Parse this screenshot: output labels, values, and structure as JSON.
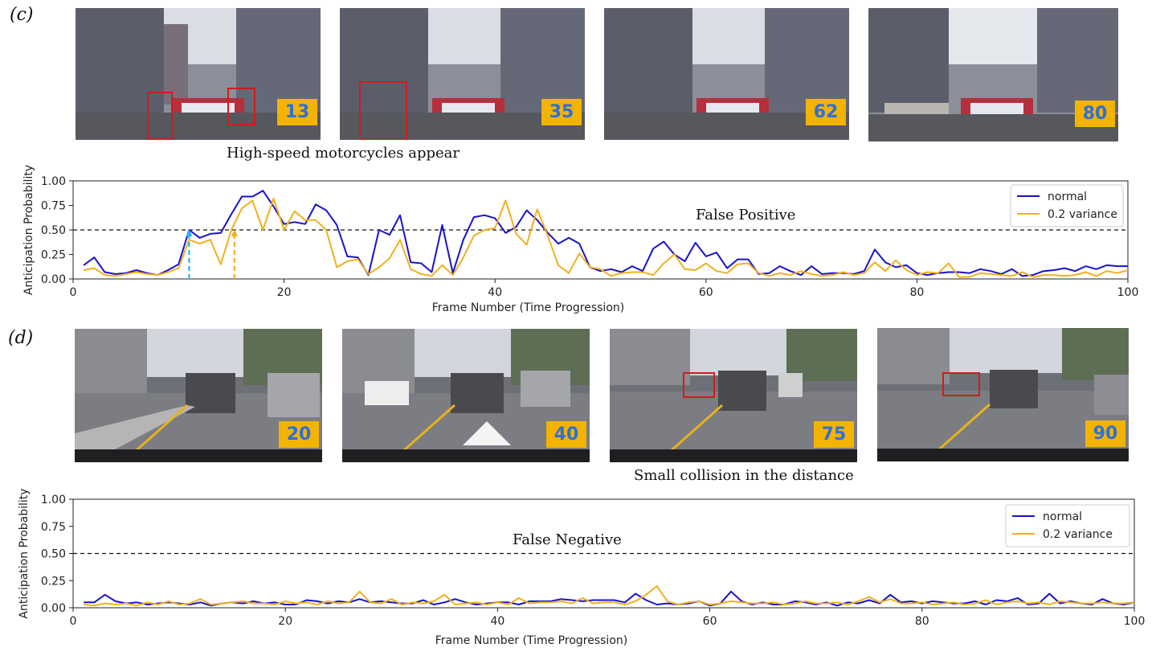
{
  "panels": [
    {
      "label": "(c)",
      "frames": [
        {
          "frame": "13",
          "scene": "urban-street-motorcycles"
        },
        {
          "frame": "35",
          "scene": "urban-street-motorcycles"
        },
        {
          "frame": "62",
          "scene": "urban-street-motorcycles"
        },
        {
          "frame": "80",
          "scene": "urban-street-motorcycles"
        }
      ],
      "caption": "High-speed motorcycles appear"
    },
    {
      "label": "(d)",
      "frames": [
        {
          "frame": "20",
          "scene": "multi-lane-road"
        },
        {
          "frame": "40",
          "scene": "multi-lane-road"
        },
        {
          "frame": "75",
          "scene": "multi-lane-road"
        },
        {
          "frame": "90",
          "scene": "multi-lane-road"
        }
      ],
      "caption": "Small collision in the distance"
    }
  ],
  "colors": {
    "normal": "#1a12c8",
    "variance": "#f0b020",
    "badge_bg": "#f2b400",
    "badge_text": "#2f6fd8",
    "threshold": "#111111",
    "cyan_marker": "#29b6e8"
  },
  "chart_data": [
    {
      "type": "line",
      "annotation": "False Positive",
      "xlabel": "Frame Number (Time Progression)",
      "ylabel": "Anticipation Probability",
      "xlim": [
        0,
        100
      ],
      "ylim": [
        0,
        1
      ],
      "xticks": [
        "0",
        "20",
        "40",
        "60",
        "80",
        "100"
      ],
      "yticks": [
        "0.00",
        "0.25",
        "0.50",
        "0.75",
        "1.00"
      ],
      "threshold": 0.5,
      "markers": [
        {
          "x": 11,
          "y": 0.5,
          "color": "cyan"
        },
        {
          "x": 15.3,
          "y": 0.5,
          "color": "orange"
        }
      ],
      "legend_position": "top-right",
      "series": [
        {
          "name": "normal",
          "x": [
            1,
            2,
            3,
            4,
            5,
            6,
            7,
            8,
            9,
            10,
            11,
            12,
            13,
            14,
            15,
            16,
            17,
            18,
            19,
            20,
            21,
            22,
            23,
            24,
            25,
            26,
            27,
            28,
            29,
            30,
            31,
            32,
            33,
            34,
            35,
            36,
            37,
            38,
            39,
            40,
            41,
            42,
            43,
            44,
            45,
            46,
            47,
            48,
            49,
            50,
            51,
            52,
            53,
            54,
            55,
            56,
            57,
            58,
            59,
            60,
            61,
            62,
            63,
            64,
            65,
            66,
            67,
            68,
            69,
            70,
            71,
            72,
            73,
            74,
            75,
            76,
            77,
            78,
            79,
            80,
            81,
            82,
            83,
            84,
            85,
            86,
            87,
            88,
            89,
            90,
            91,
            92,
            93,
            94,
            95,
            96,
            97,
            98,
            99,
            100
          ],
          "values": [
            0.14,
            0.22,
            0.07,
            0.05,
            0.06,
            0.09,
            0.06,
            0.04,
            0.09,
            0.15,
            0.5,
            0.42,
            0.46,
            0.47,
            0.66,
            0.84,
            0.84,
            0.9,
            0.74,
            0.56,
            0.58,
            0.56,
            0.76,
            0.7,
            0.55,
            0.23,
            0.22,
            0.04,
            0.5,
            0.45,
            0.65,
            0.17,
            0.16,
            0.07,
            0.55,
            0.06,
            0.4,
            0.63,
            0.65,
            0.62,
            0.47,
            0.53,
            0.7,
            0.6,
            0.47,
            0.36,
            0.42,
            0.36,
            0.12,
            0.08,
            0.1,
            0.07,
            0.13,
            0.08,
            0.31,
            0.38,
            0.25,
            0.18,
            0.37,
            0.23,
            0.27,
            0.11,
            0.2,
            0.2,
            0.05,
            0.06,
            0.13,
            0.08,
            0.04,
            0.13,
            0.05,
            0.06,
            0.06,
            0.05,
            0.08,
            0.3,
            0.17,
            0.12,
            0.14,
            0.06,
            0.04,
            0.06,
            0.07,
            0.07,
            0.06,
            0.1,
            0.08,
            0.05,
            0.1,
            0.03,
            0.04,
            0.08,
            0.09,
            0.11,
            0.08,
            0.13,
            0.1,
            0.14,
            0.13,
            0.13
          ]
        },
        {
          "name": "0.2 variance",
          "x": [
            1,
            2,
            3,
            4,
            5,
            6,
            7,
            8,
            9,
            10,
            11,
            12,
            13,
            14,
            15,
            16,
            17,
            18,
            19,
            20,
            21,
            22,
            23,
            24,
            25,
            26,
            27,
            28,
            29,
            30,
            31,
            32,
            33,
            34,
            35,
            36,
            37,
            38,
            39,
            40,
            41,
            42,
            43,
            44,
            45,
            46,
            47,
            48,
            49,
            50,
            51,
            52,
            53,
            54,
            55,
            56,
            57,
            58,
            59,
            60,
            61,
            62,
            63,
            64,
            65,
            66,
            67,
            68,
            69,
            70,
            71,
            72,
            73,
            74,
            75,
            76,
            77,
            78,
            79,
            80,
            81,
            82,
            83,
            84,
            85,
            86,
            87,
            88,
            89,
            90,
            91,
            92,
            93,
            94,
            95,
            96,
            97,
            98,
            99,
            100
          ],
          "values": [
            0.09,
            0.11,
            0.04,
            0.03,
            0.05,
            0.07,
            0.05,
            0.04,
            0.07,
            0.11,
            0.4,
            0.36,
            0.4,
            0.15,
            0.5,
            0.72,
            0.8,
            0.5,
            0.82,
            0.5,
            0.69,
            0.6,
            0.6,
            0.5,
            0.12,
            0.18,
            0.2,
            0.05,
            0.12,
            0.21,
            0.4,
            0.1,
            0.05,
            0.03,
            0.14,
            0.04,
            0.22,
            0.44,
            0.5,
            0.52,
            0.8,
            0.46,
            0.35,
            0.71,
            0.44,
            0.14,
            0.06,
            0.26,
            0.12,
            0.1,
            0.03,
            0.06,
            0.07,
            0.07,
            0.04,
            0.16,
            0.25,
            0.1,
            0.09,
            0.16,
            0.08,
            0.06,
            0.15,
            0.16,
            0.06,
            0.03,
            0.06,
            0.04,
            0.08,
            0.05,
            0.03,
            0.04,
            0.07,
            0.04,
            0.06,
            0.17,
            0.08,
            0.19,
            0.09,
            0.04,
            0.07,
            0.06,
            0.16,
            0.02,
            0.02,
            0.06,
            0.05,
            0.04,
            0.03,
            0.07,
            0.02,
            0.04,
            0.04,
            0.03,
            0.04,
            0.07,
            0.03,
            0.08,
            0.06,
            0.09
          ]
        }
      ]
    },
    {
      "type": "line",
      "annotation": "False Negative",
      "xlabel": "Frame Number (Time Progression)",
      "ylabel": "Anticipation Probability",
      "xlim": [
        0,
        100
      ],
      "ylim": [
        0,
        1
      ],
      "xticks": [
        "0",
        "20",
        "40",
        "60",
        "80",
        "100"
      ],
      "yticks": [
        "0.00",
        "0.25",
        "0.50",
        "0.75",
        "1.00"
      ],
      "threshold": 0.5,
      "markers": [],
      "legend_position": "top-right",
      "series": [
        {
          "name": "normal",
          "x": [
            1,
            2,
            3,
            4,
            5,
            6,
            7,
            8,
            9,
            10,
            11,
            12,
            13,
            14,
            15,
            16,
            17,
            18,
            19,
            20,
            21,
            22,
            23,
            24,
            25,
            26,
            27,
            28,
            29,
            30,
            31,
            32,
            33,
            34,
            35,
            36,
            37,
            38,
            39,
            40,
            41,
            42,
            43,
            44,
            45,
            46,
            47,
            48,
            49,
            50,
            51,
            52,
            53,
            54,
            55,
            56,
            57,
            58,
            59,
            60,
            61,
            62,
            63,
            64,
            65,
            66,
            67,
            68,
            69,
            70,
            71,
            72,
            73,
            74,
            75,
            76,
            77,
            78,
            79,
            80,
            81,
            82,
            83,
            84,
            85,
            86,
            87,
            88,
            89,
            90,
            91,
            92,
            93,
            94,
            95,
            96,
            97,
            98,
            99,
            100
          ],
          "values": [
            0.05,
            0.05,
            0.12,
            0.06,
            0.04,
            0.05,
            0.03,
            0.04,
            0.05,
            0.04,
            0.03,
            0.05,
            0.02,
            0.04,
            0.05,
            0.04,
            0.06,
            0.04,
            0.05,
            0.03,
            0.03,
            0.07,
            0.06,
            0.04,
            0.06,
            0.05,
            0.08,
            0.05,
            0.06,
            0.05,
            0.04,
            0.04,
            0.07,
            0.03,
            0.05,
            0.08,
            0.05,
            0.03,
            0.04,
            0.05,
            0.05,
            0.03,
            0.06,
            0.06,
            0.06,
            0.08,
            0.07,
            0.06,
            0.07,
            0.07,
            0.07,
            0.05,
            0.13,
            0.07,
            0.03,
            0.04,
            0.03,
            0.04,
            0.06,
            0.02,
            0.04,
            0.15,
            0.06,
            0.03,
            0.05,
            0.03,
            0.03,
            0.06,
            0.05,
            0.03,
            0.05,
            0.02,
            0.05,
            0.04,
            0.07,
            0.04,
            0.12,
            0.05,
            0.06,
            0.04,
            0.06,
            0.05,
            0.04,
            0.04,
            0.06,
            0.03,
            0.07,
            0.06,
            0.09,
            0.03,
            0.04,
            0.13,
            0.04,
            0.06,
            0.04,
            0.03,
            0.08,
            0.04,
            0.03,
            0.05
          ]
        },
        {
          "name": "0.2 variance",
          "x": [
            1,
            2,
            3,
            4,
            5,
            6,
            7,
            8,
            9,
            10,
            11,
            12,
            13,
            14,
            15,
            16,
            17,
            18,
            19,
            20,
            21,
            22,
            23,
            24,
            25,
            26,
            27,
            28,
            29,
            30,
            31,
            32,
            33,
            34,
            35,
            36,
            37,
            38,
            39,
            40,
            41,
            42,
            43,
            44,
            45,
            46,
            47,
            48,
            49,
            50,
            51,
            52,
            53,
            54,
            55,
            56,
            57,
            58,
            59,
            60,
            61,
            62,
            63,
            64,
            65,
            66,
            67,
            68,
            69,
            70,
            71,
            72,
            73,
            74,
            75,
            76,
            77,
            78,
            79,
            80,
            81,
            82,
            83,
            84,
            85,
            86,
            87,
            88,
            89,
            90,
            91,
            92,
            93,
            94,
            95,
            96,
            97,
            98,
            99,
            100
          ],
          "values": [
            0.03,
            0.02,
            0.04,
            0.03,
            0.04,
            0.02,
            0.05,
            0.03,
            0.06,
            0.03,
            0.04,
            0.08,
            0.03,
            0.04,
            0.05,
            0.06,
            0.04,
            0.04,
            0.03,
            0.06,
            0.04,
            0.05,
            0.03,
            0.06,
            0.04,
            0.05,
            0.15,
            0.05,
            0.04,
            0.08,
            0.03,
            0.05,
            0.04,
            0.06,
            0.12,
            0.03,
            0.04,
            0.05,
            0.03,
            0.05,
            0.03,
            0.09,
            0.04,
            0.05,
            0.05,
            0.06,
            0.04,
            0.09,
            0.04,
            0.05,
            0.05,
            0.03,
            0.06,
            0.12,
            0.2,
            0.06,
            0.03,
            0.05,
            0.06,
            0.03,
            0.04,
            0.06,
            0.05,
            0.04,
            0.04,
            0.05,
            0.03,
            0.04,
            0.06,
            0.04,
            0.04,
            0.05,
            0.03,
            0.06,
            0.1,
            0.05,
            0.08,
            0.04,
            0.04,
            0.05,
            0.03,
            0.04,
            0.05,
            0.03,
            0.04,
            0.07,
            0.03,
            0.05,
            0.06,
            0.04,
            0.05,
            0.03,
            0.06,
            0.05,
            0.04,
            0.04,
            0.05,
            0.04,
            0.04,
            0.05
          ]
        }
      ]
    }
  ]
}
